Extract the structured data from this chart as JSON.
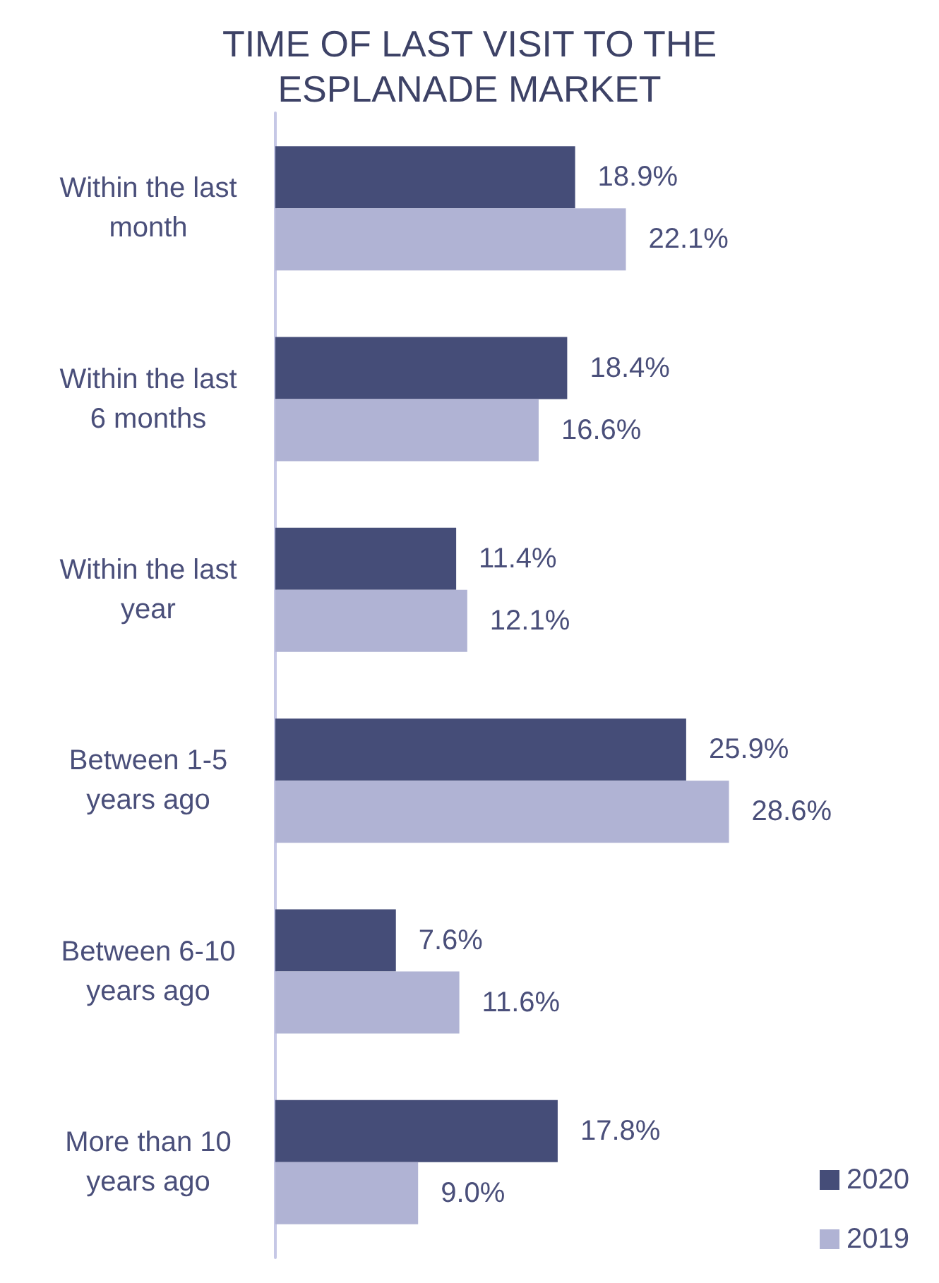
{
  "chart_data": {
    "type": "bar",
    "orientation": "horizontal",
    "title": "TIME OF LAST VISIT TO THE\nESPLANADE MARKET",
    "categories": [
      "Within the last\nmonth",
      "Within the last\n6 months",
      "Within the last\nyear",
      "Between 1-5\nyears ago",
      "Between 6-10\nyears ago",
      "More than 10\nyears ago"
    ],
    "series": [
      {
        "name": "2020",
        "color": "#454d78",
        "values": [
          18.9,
          18.4,
          11.4,
          25.9,
          7.6,
          17.8
        ],
        "value_labels": [
          "18.9%",
          "18.4%",
          "11.4%",
          "25.9%",
          "7.6%",
          "17.8%"
        ]
      },
      {
        "name": "2019",
        "color": "#b0b3d4",
        "values": [
          22.1,
          16.6,
          12.1,
          28.6,
          11.6,
          9.0
        ],
        "value_labels": [
          "22.1%",
          "16.6%",
          "12.1%",
          "28.6%",
          "11.6%",
          "9.0%"
        ]
      }
    ],
    "legend": "bottom right"
  }
}
